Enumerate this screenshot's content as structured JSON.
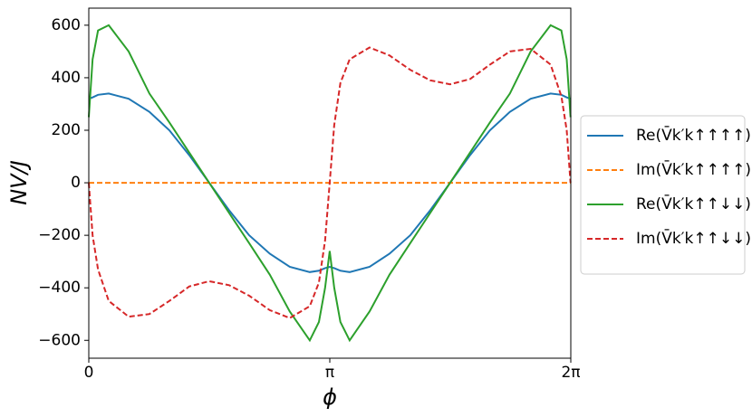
{
  "chart_data": {
    "type": "line",
    "xlabel": "ϕ",
    "ylabel": "NV/J",
    "x": [
      0,
      0.05,
      0.12,
      0.26,
      0.52,
      0.79,
      1.05,
      1.31,
      1.57,
      1.83,
      2.09,
      2.36,
      2.62,
      2.88,
      3.0,
      3.08,
      3.14,
      3.2,
      3.28,
      3.4,
      3.66,
      3.92,
      4.19,
      4.45,
      4.71,
      4.97,
      5.23,
      5.49,
      5.76,
      6.02,
      6.16,
      6.23,
      6.28
    ],
    "xlim": [
      0,
      6.2832
    ],
    "xticks": [
      0,
      {
        "value": 3.1416,
        "label": "π"
      },
      {
        "value": 6.2832,
        "label": "2π"
      }
    ],
    "ylim": [
      -668,
      665
    ],
    "yticks": [
      {
        "value": -600,
        "label": "−600"
      },
      {
        "value": -400,
        "label": "−400"
      },
      {
        "value": -200,
        "label": "−200"
      },
      0,
      200,
      400,
      600
    ],
    "legend": "outside-right",
    "series": [
      {
        "name": "Re(V̄k′k↑↑↑↑)",
        "color": "#1f77b4",
        "linestyle": "solid",
        "values": [
          320,
          325,
          335,
          340,
          320,
          270,
          200,
          105,
          0,
          -105,
          -200,
          -270,
          -320,
          -340,
          -335,
          -325,
          -320,
          -325,
          -335,
          -340,
          -320,
          -270,
          -200,
          -105,
          0,
          105,
          200,
          270,
          320,
          340,
          335,
          325,
          320
        ]
      },
      {
        "name": "Im(V̄k′k↑↑↑↑)",
        "color": "#ff7f0e",
        "linestyle": "dashed",
        "values": [
          0,
          0,
          0,
          0,
          0,
          0,
          0,
          0,
          0,
          0,
          0,
          0,
          0,
          0,
          0,
          0,
          0,
          0,
          0,
          0,
          0,
          0,
          0,
          0,
          0,
          0,
          0,
          0,
          0,
          0,
          0,
          0,
          0
        ]
      },
      {
        "name": "Re(V̄k′k↑↑↓↓)",
        "color": "#2ca02c",
        "linestyle": "solid",
        "values": [
          250,
          470,
          580,
          600,
          500,
          340,
          230,
          115,
          0,
          -115,
          -230,
          -350,
          -490,
          -600,
          -530,
          -400,
          -260,
          -400,
          -530,
          -600,
          -490,
          -350,
          -230,
          -115,
          0,
          115,
          230,
          340,
          500,
          600,
          580,
          470,
          250
        ]
      },
      {
        "name": "Im(V̄k′k↑↑↓↓)",
        "color": "#d62728",
        "linestyle": "dashed",
        "values": [
          0,
          -200,
          -330,
          -450,
          -510,
          -500,
          -450,
          -395,
          -375,
          -390,
          -430,
          -485,
          -515,
          -470,
          -380,
          -220,
          0,
          220,
          380,
          470,
          515,
          485,
          430,
          390,
          375,
          395,
          450,
          500,
          510,
          450,
          330,
          200,
          0
        ]
      }
    ]
  }
}
